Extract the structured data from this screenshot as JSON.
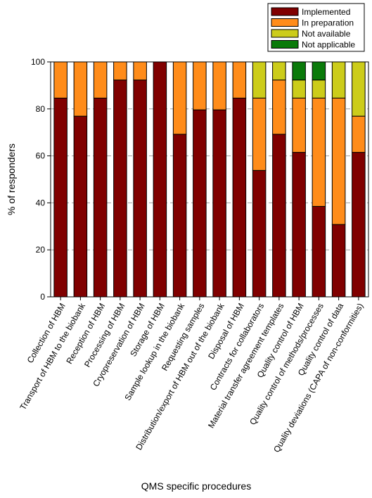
{
  "chart_data": {
    "type": "bar",
    "stacked": true,
    "title": "",
    "xlabel": "QMS specific procedures",
    "ylabel": "% of responders",
    "ylim": [
      0,
      100
    ],
    "yticks": [
      0,
      20,
      40,
      60,
      80,
      100
    ],
    "grid": "horizontal dashed",
    "legend_position": "top-right",
    "categories": [
      "Collection of HBM",
      "Transport of HBM to the biobank",
      "Reception of HBM",
      "Processing of HBM",
      "Cryopreservation of HBM",
      "Storage of HBM",
      "Sample lookup in the biobank",
      "Requesting samples",
      "Distribution/export of HBM out of the biobank",
      "Disposal of HBM",
      "Contracts for collaborators",
      "Material transfer agreement templates",
      "Quality control of HBM",
      "Quality control of methods/processes",
      "Quality control of data",
      "Quality deviations (CAPA of non-conformities)"
    ],
    "series": [
      {
        "name": "Implemented",
        "color": "#800000",
        "values": [
          84.6,
          76.9,
          84.6,
          92.3,
          92.3,
          100,
          69.2,
          79.6,
          79.6,
          84.6,
          53.8,
          69.2,
          61.5,
          38.5,
          30.8,
          61.5
        ]
      },
      {
        "name": "In preparation",
        "color": "#ff8c1a",
        "values": [
          15.4,
          23.1,
          15.4,
          7.7,
          7.7,
          0,
          30.8,
          20.4,
          20.4,
          15.4,
          30.8,
          23.1,
          23.1,
          46.1,
          53.8,
          15.4
        ]
      },
      {
        "name": "Not available",
        "color": "#cccc1a",
        "values": [
          0,
          0,
          0,
          0,
          0,
          0,
          0,
          0,
          0,
          0,
          15.4,
          7.7,
          7.7,
          7.7,
          15.4,
          23.1
        ]
      },
      {
        "name": "Not applicable",
        "color": "#0a7a0a",
        "values": [
          0,
          0,
          0,
          0,
          0,
          0,
          0,
          0,
          0,
          0,
          0,
          0,
          7.7,
          7.7,
          0,
          0
        ]
      }
    ]
  }
}
